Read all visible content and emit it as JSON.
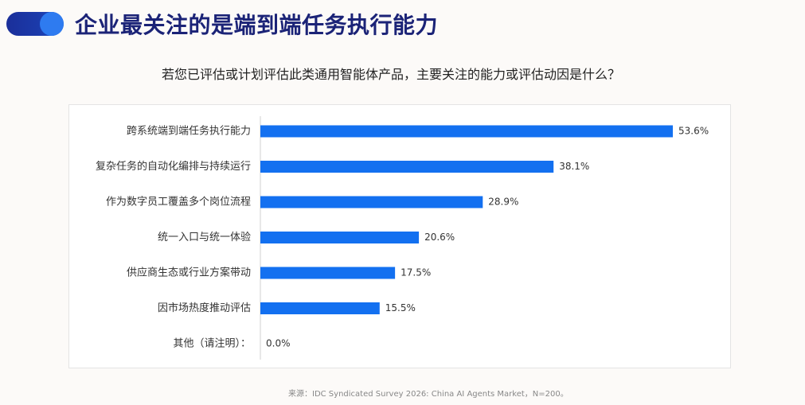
{
  "title": "企业最关注的是端到端任务执行能力",
  "subtitle": "若您已评估或计划评估此类通用智能体产品，主要关注的能力或评估动因是什么？",
  "source": "来源：IDC Syndicated Survey 2026: China AI Agents Market，N=200。",
  "colors": {
    "bar": "#1370f0",
    "title": "#1b2377",
    "accent_dark": "#1b2f9a",
    "accent_light": "#2e7bf0"
  },
  "chart_data": {
    "type": "bar",
    "orientation": "horizontal",
    "categories": [
      "跨系统端到端任务执行能力",
      "复杂任务的自动化编排与持续运行",
      "作为数字员工覆盖多个岗位流程",
      "统一入口与统一体验",
      "供应商生态或行业方案带动",
      "因市场热度推动评估",
      "其他（请注明）："
    ],
    "values": [
      53.6,
      38.1,
      28.9,
      20.6,
      17.5,
      15.5,
      0.0
    ],
    "data_labels": [
      "53.6%",
      "38.1%",
      "28.9%",
      "20.6%",
      "17.5%",
      "15.5%",
      "0.0%"
    ],
    "unit": "%",
    "xlim": [
      0,
      53.6
    ],
    "grid": false,
    "legend": "none"
  }
}
